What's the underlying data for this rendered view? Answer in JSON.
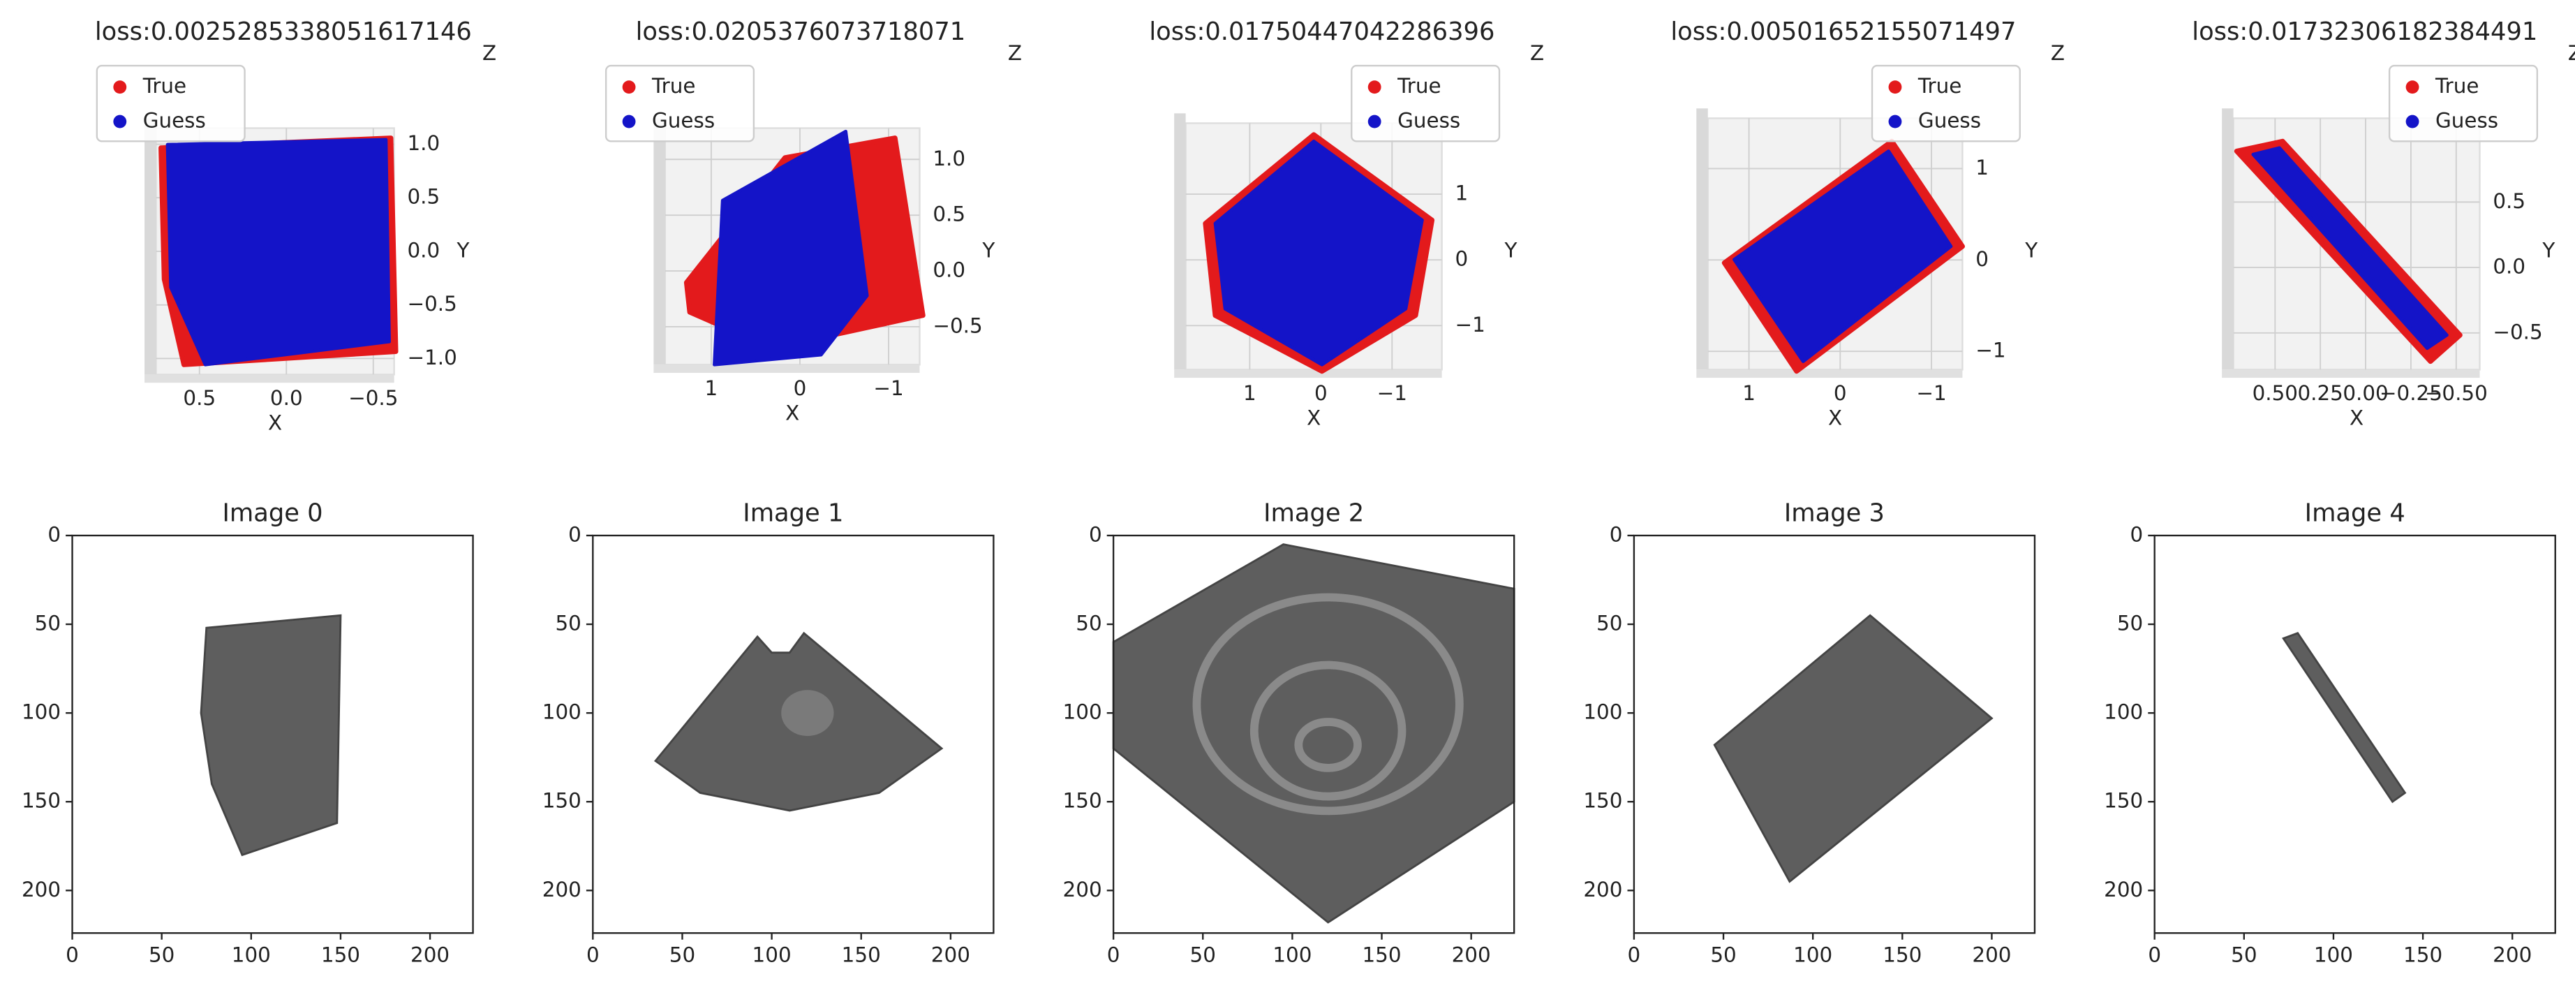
{
  "chart_data": [
    {
      "type": "scatter3d",
      "title": "loss:0.0025285338051617146",
      "xlabel": "X",
      "ylabel": "Y",
      "zlabel": "Z",
      "xlim": [
        0.75,
        -0.62
      ],
      "xticks": [
        0.5,
        {
          "value": 0,
          "label": "0.0"
        },
        {
          "value": -0.5,
          "label": "−0.5"
        }
      ],
      "ylim": [
        -1.15,
        1.15
      ],
      "yticks": [
        {
          "value": 1,
          "label": "1.0"
        },
        0.5,
        {
          "value": 0,
          "label": "0.0"
        },
        {
          "value": -0.5,
          "label": "−0.5"
        },
        {
          "value": -1,
          "label": "−1.0"
        }
      ],
      "legend": "upper left",
      "grid": true,
      "series": [
        {
          "name": "True",
          "color": "#e31a1c"
        },
        {
          "name": "Guess",
          "color": "#1414c8"
        }
      ]
    },
    {
      "type": "scatter3d",
      "title": "loss:0.0205376073718071",
      "xlabel": "X",
      "ylabel": "Y",
      "zlabel": "Z",
      "xlim": [
        1.52,
        -1.35
      ],
      "xticks": [
        1,
        0,
        {
          "value": -1,
          "label": "−1"
        }
      ],
      "ylim": [
        -0.84,
        1.28
      ],
      "yticks": [
        {
          "value": 1,
          "label": "1.0"
        },
        0.5,
        {
          "value": 0,
          "label": "0.0"
        },
        {
          "value": -0.5,
          "label": "−0.5"
        }
      ],
      "legend": "upper left",
      "grid": true,
      "series": [
        {
          "name": "True",
          "color": "#e31a1c"
        },
        {
          "name": "Guess",
          "color": "#1414c8"
        }
      ]
    },
    {
      "type": "scatter3d",
      "title": "loss:0.01750447042286396",
      "xlabel": "X",
      "ylabel": "Y",
      "zlabel": "Z",
      "xlim": [
        1.9,
        -1.7
      ],
      "xticks": [
        1,
        0,
        {
          "value": -1,
          "label": "−1"
        }
      ],
      "ylim": [
        -1.67,
        2.08
      ],
      "yticks": [
        1,
        0,
        {
          "value": -1,
          "label": "−1"
        }
      ],
      "legend": "upper right",
      "grid": true,
      "series": [
        {
          "name": "True",
          "color": "#e31a1c"
        },
        {
          "name": "Guess",
          "color": "#1414c8"
        }
      ]
    },
    {
      "type": "scatter3d",
      "title": "loss:0.00501652155071497",
      "xlabel": "X",
      "ylabel": "Y",
      "zlabel": "Z",
      "xlim": [
        1.45,
        -1.34
      ],
      "xticks": [
        1,
        0,
        {
          "value": -1,
          "label": "−1"
        }
      ],
      "ylim": [
        -1.2,
        1.55
      ],
      "yticks": [
        1,
        0,
        {
          "value": -1,
          "label": "−1"
        }
      ],
      "legend": "upper right",
      "grid": true,
      "series": [
        {
          "name": "True",
          "color": "#e31a1c"
        },
        {
          "name": "Guess",
          "color": "#1414c8"
        }
      ]
    },
    {
      "type": "scatter3d",
      "title": "loss:0.01732306182384491",
      "xlabel": "X",
      "ylabel": "Y",
      "zlabel": "Z",
      "xlim": [
        0.73,
        -0.63
      ],
      "xticks": [
        {
          "value": 0.5,
          "label": "0.50"
        },
        0.25,
        {
          "value": 0,
          "label": "0.00"
        },
        {
          "value": -0.25,
          "label": "−0.25"
        },
        {
          "value": -0.5,
          "label": "−0.50"
        }
      ],
      "ylim": [
        -0.78,
        1.14
      ],
      "yticks": [
        0.5,
        {
          "value": 0,
          "label": "0.0"
        },
        {
          "value": -0.5,
          "label": "−0.5"
        }
      ],
      "legend": "upper right",
      "grid": true,
      "series": [
        {
          "name": "True",
          "color": "#e31a1c"
        },
        {
          "name": "Guess",
          "color": "#1414c8"
        }
      ]
    },
    {
      "type": "image",
      "title": "Image 0",
      "xlim": [
        0,
        224
      ],
      "ylim": [
        224,
        0
      ],
      "xticks": [
        0,
        50,
        100,
        150,
        200
      ],
      "yticks": [
        0,
        50,
        100,
        150,
        200
      ]
    },
    {
      "type": "image",
      "title": "Image 1",
      "xlim": [
        0,
        224
      ],
      "ylim": [
        224,
        0
      ],
      "xticks": [
        0,
        50,
        100,
        150,
        200
      ],
      "yticks": [
        0,
        50,
        100,
        150,
        200
      ]
    },
    {
      "type": "image",
      "title": "Image 2",
      "xlim": [
        0,
        224
      ],
      "ylim": [
        224,
        0
      ],
      "xticks": [
        0,
        50,
        100,
        150,
        200
      ],
      "yticks": [
        0,
        50,
        100,
        150,
        200
      ]
    },
    {
      "type": "image",
      "title": "Image 3",
      "xlim": [
        0,
        224
      ],
      "ylim": [
        224,
        0
      ],
      "xticks": [
        0,
        50,
        100,
        150,
        200
      ],
      "yticks": [
        0,
        50,
        100,
        150,
        200
      ]
    },
    {
      "type": "image",
      "title": "Image 4",
      "xlim": [
        0,
        224
      ],
      "ylim": [
        224,
        0
      ],
      "xticks": [
        0,
        50,
        100,
        150,
        200
      ],
      "yticks": [
        0,
        50,
        100,
        150,
        200
      ]
    }
  ]
}
